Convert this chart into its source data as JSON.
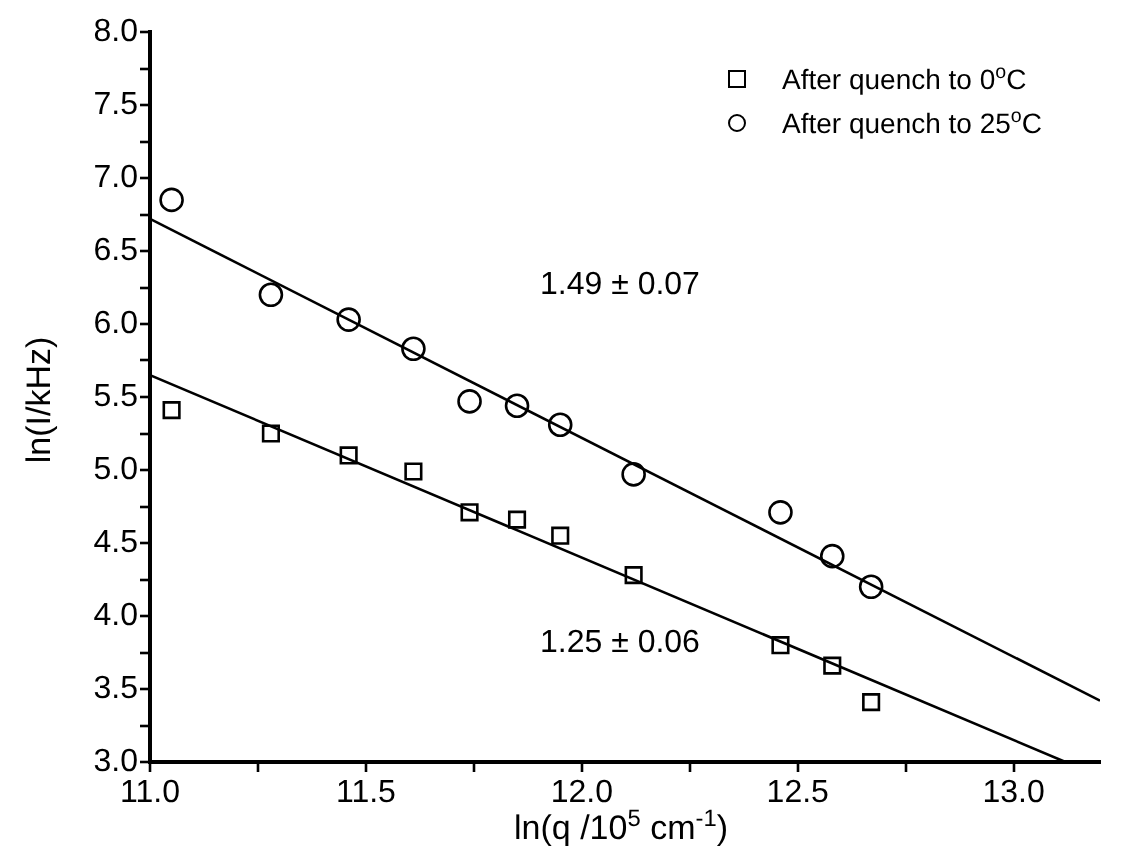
{
  "chart_data": {
    "type": "scatter",
    "xlabel": "ln(q /10$^{5}$ cm$^{-1}$)",
    "ylabel": "ln(I/kHz)",
    "xlim": [
      11.0,
      13.2
    ],
    "xticks": [
      {
        "value": 11.0,
        "label": "11.0"
      },
      {
        "value": 11.25,
        "label": null
      },
      {
        "value": 11.5,
        "label": "11.5"
      },
      {
        "value": 11.75,
        "label": null
      },
      {
        "value": 12.0,
        "label": "12.0"
      },
      {
        "value": 12.25,
        "label": null
      },
      {
        "value": 12.5,
        "label": "12.5"
      },
      {
        "value": 12.75,
        "label": null
      },
      {
        "value": 13.0,
        "label": "13.0"
      }
    ],
    "ylim": [
      3.0,
      8.0
    ],
    "yticks": [
      {
        "value": 3.0,
        "label": "3.0"
      },
      {
        "value": 3.25,
        "label": null
      },
      {
        "value": 3.5,
        "label": "3.5"
      },
      {
        "value": 3.75,
        "label": null
      },
      {
        "value": 4.0,
        "label": "4.0"
      },
      {
        "value": 4.25,
        "label": null
      },
      {
        "value": 4.5,
        "label": "4.5"
      },
      {
        "value": 4.75,
        "label": null
      },
      {
        "value": 5.0,
        "label": "5.0"
      },
      {
        "value": 5.25,
        "label": null
      },
      {
        "value": 5.5,
        "label": "5.5"
      },
      {
        "value": 5.75,
        "label": null
      },
      {
        "value": 6.0,
        "label": "6.0"
      },
      {
        "value": 6.25,
        "label": null
      },
      {
        "value": 6.5,
        "label": "6.5"
      },
      {
        "value": 6.75,
        "label": null
      },
      {
        "value": 7.0,
        "label": "7.0"
      },
      {
        "value": 7.25,
        "label": null
      },
      {
        "value": 7.5,
        "label": "7.5"
      },
      {
        "value": 7.75,
        "label": null
      },
      {
        "value": 8.0,
        "label": "8.0"
      }
    ],
    "grid": false,
    "legend": "top right",
    "series": [
      {
        "name": "After quench to 0$^{o}$C",
        "color": "#000000",
        "marker": "square",
        "x": [
          11.05,
          11.28,
          11.46,
          11.61,
          11.74,
          11.85,
          11.95,
          12.12,
          12.46,
          12.58,
          12.67
        ],
        "values": [
          5.41,
          5.25,
          5.1,
          4.99,
          4.71,
          4.66,
          4.55,
          4.28,
          3.8,
          3.66,
          3.41
        ]
      },
      {
        "name": "After quench to 25$^{o}$C",
        "color": "#000000",
        "marker": "circle",
        "x": [
          11.05,
          11.28,
          11.46,
          11.61,
          11.74,
          11.85,
          11.95,
          12.12,
          12.46,
          12.58,
          12.67
        ],
        "values": [
          6.85,
          6.2,
          6.03,
          5.83,
          5.47,
          5.44,
          5.31,
          4.97,
          4.71,
          4.41,
          4.2
        ]
      },
      {
        "type": "line",
        "color": "#000000",
        "marker": "none",
        "x": [
          11.0,
          13.12
        ],
        "values": [
          5.65,
          3.0
        ]
      },
      {
        "type": "line",
        "color": "#000000",
        "marker": "none",
        "x": [
          11.0,
          13.2
        ],
        "values": [
          6.72,
          3.42
        ]
      }
    ],
    "annotations": [
      "1.49 ± 0.07",
      "1.25 ± 0.06"
    ]
  }
}
